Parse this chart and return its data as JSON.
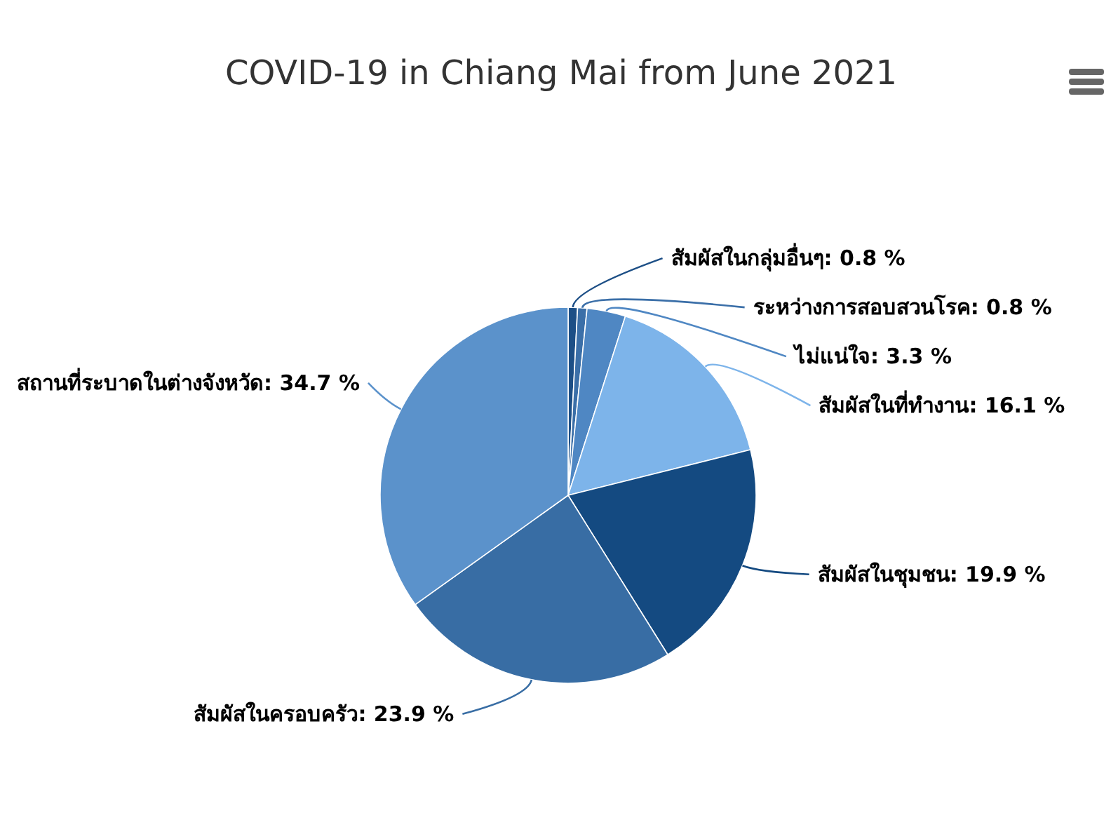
{
  "chart_data": {
    "type": "pie",
    "title": "COVID-19 in Chiang Mai from June 2021",
    "categories": [
      "สัมผัสในกลุ่มอื่นๆ",
      "ระหว่างการสอบสวนโรค",
      "ไม่แน่ใจ",
      "สัมผัสในที่ทำงาน",
      "สัมผัสในชุมชน",
      "สัมผัสในครอบครัว",
      "สถานที่ระบาดในต่างจังหวัด"
    ],
    "values": [
      0.8,
      0.8,
      3.3,
      16.1,
      19.9,
      23.9,
      34.7
    ],
    "value_labels": [
      "0.8 %",
      "0.8 %",
      "3.3 %",
      "16.1 %",
      "19.9 %",
      "23.9 %",
      "34.7 %"
    ],
    "colors": [
      "#1d4f86",
      "#3b6fa8",
      "#4f87c3",
      "#7db4ea",
      "#144a81",
      "#386da4",
      "#5b92cb"
    ]
  }
}
